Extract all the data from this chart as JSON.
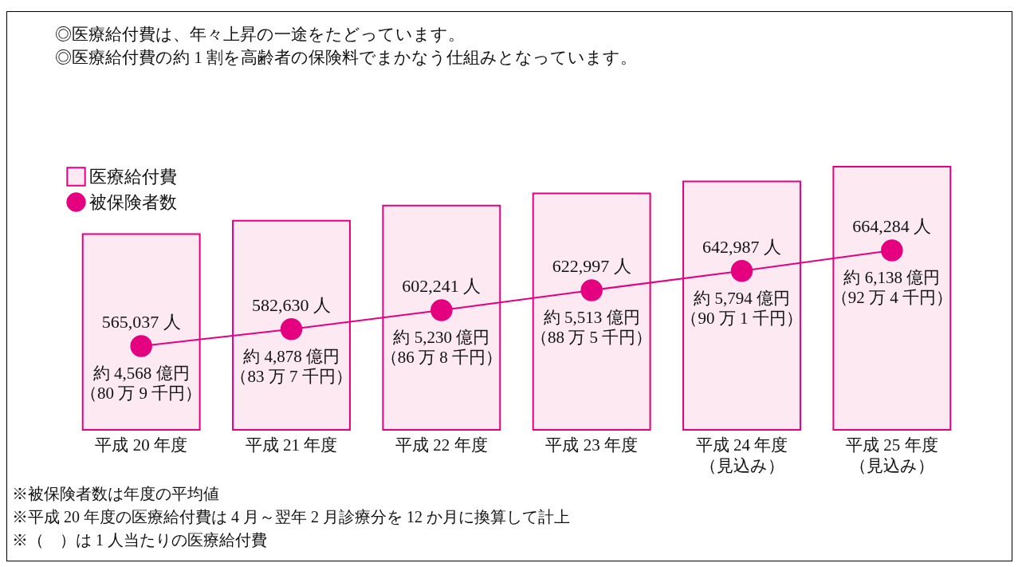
{
  "chart_data": {
    "type": "bar",
    "title": "◎医療給付費は、年々上昇の一途をたどっています。",
    "subtitle": "◎医療給付費の約 1 割を高齢者の保険料でまかなう仕組みとなっています。",
    "categories": [
      "平成 20 年度",
      "平成 21 年度",
      "平成 22 年度",
      "平成 23 年度",
      "平成 24 年度（見込み）",
      "平成 25 年度（見込み）"
    ],
    "series": [
      {
        "name": "医療給付費",
        "color": "#fce9f2",
        "values": [
          4568,
          4878,
          5230,
          5513,
          5794,
          6138
        ],
        "value_labels": [
          "約 4,568 億円（80 万 9 千円）",
          "約 4,878 億円（83 万 7 千円）",
          "約 5,230 億円（86 万 8 千円）",
          "約 5,513 億円（88 万 5 千円）",
          "約 5,794 億円（90 万 1 千円）",
          "約 6,138 億円（92 万 4 千円）"
        ]
      },
      {
        "name": "被保険者数",
        "type": "line",
        "axis": "y2",
        "color": "#e4007f",
        "values": [
          565037,
          582630,
          602241,
          622997,
          642987,
          664284
        ],
        "value_labels": [
          "565,037 人",
          "582,630 人",
          "602,241 人",
          "622,997 人",
          "642,987 人",
          "664,284 人"
        ]
      }
    ],
    "marker": "circle",
    "legend": "top left",
    "grid": false,
    "annotations": [
      "※被保険者数は年度の平均値",
      "※平成 20 年度の医療給付費は 4 月～翌年 2 月診療分を 12 か月に換算して計上",
      "※（　）は 1 人当たりの医療給付費"
    ]
  }
}
